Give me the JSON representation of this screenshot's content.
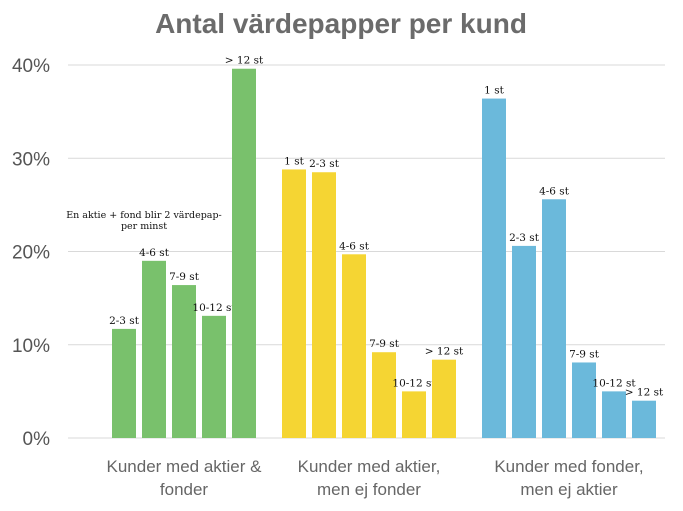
{
  "chart_data": {
    "type": "bar",
    "title": "Antal värdepapper per kund",
    "xlabel": "",
    "ylabel": "",
    "ylim": [
      0,
      40
    ],
    "yticks": [
      "0%",
      "10%",
      "20%",
      "30%",
      "40%"
    ],
    "grid": true,
    "groups": [
      {
        "name": "Kunder med aktier & fonder",
        "label_lines": [
          "Kunder med aktier &",
          "fonder"
        ],
        "color": "#79c16c",
        "categories": [
          "2-3 st",
          "4-6 st",
          "7-9 st",
          "10-12 st",
          "> 12 st"
        ],
        "values": [
          11.7,
          19.0,
          16.4,
          13.1,
          39.6
        ]
      },
      {
        "name": "Kunder med aktier, men ej fonder",
        "label_lines": [
          "Kunder med aktier,",
          "men ej fonder"
        ],
        "color": "#f5d533",
        "categories": [
          "1 st",
          "2-3 st",
          "4-6 st",
          "7-9 st",
          "10-12 st",
          "> 12 st"
        ],
        "values": [
          28.8,
          28.5,
          19.7,
          9.2,
          5.0,
          8.4
        ]
      },
      {
        "name": "Kunder med fonder, men ej aktier",
        "label_lines": [
          "Kunder med fonder,",
          "men ej aktier"
        ],
        "color": "#6bb9db",
        "categories": [
          "1 st",
          "2-3 st",
          "4-6 st",
          "7-9 st",
          "10-12 st",
          "> 12 st"
        ],
        "values": [
          36.4,
          20.6,
          25.6,
          8.1,
          5.0,
          4.0
        ]
      }
    ],
    "annotations": [
      "En aktie + fond blir 2 värdepap-",
      "per minst"
    ]
  }
}
